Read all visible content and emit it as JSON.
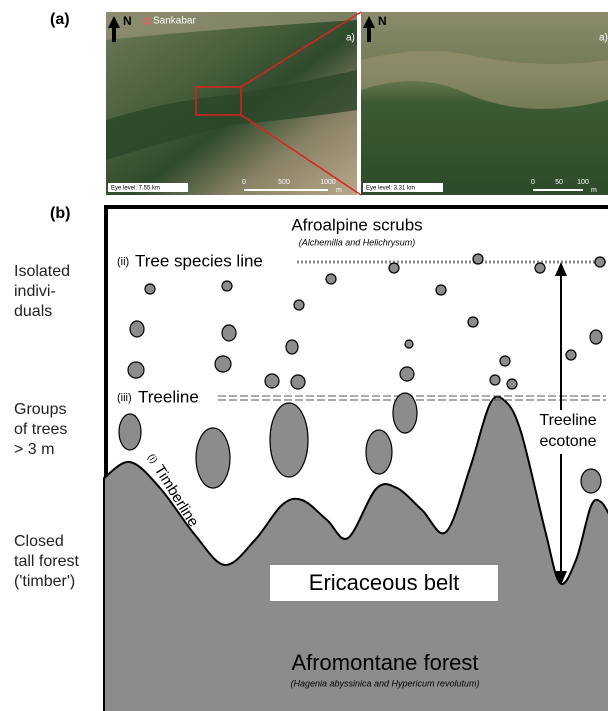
{
  "panel_a": {
    "label": "(a)",
    "images": [
      {
        "north": "N",
        "place": "Sankabar",
        "corner": "a)",
        "eye_level": "Eye level: 7.55 km",
        "scale": [
          "0",
          "500",
          "1000"
        ],
        "unit": "m"
      },
      {
        "north": "N",
        "corner": "a)",
        "eye_level": "Eye level: 3.31 km",
        "scale": [
          "0",
          "50",
          "100"
        ],
        "unit": "m"
      }
    ]
  },
  "panel_b": {
    "label": "(b)",
    "top_zone": "Afroalpine scrubs",
    "top_species": "(Alchemilla and Helichrysum)",
    "tree_species_line": {
      "marker": "(ii)",
      "text": "Tree species line"
    },
    "treeline": {
      "marker": "(iii)",
      "text": "Treeline"
    },
    "timberline": {
      "marker": "(i)",
      "text": "Timberline"
    },
    "ecotone": [
      "Treeline",
      "ecotone"
    ],
    "belt": "Ericaceous belt",
    "forest": "Afromontane forest",
    "forest_species": "(Hagenia abyssinica and Hypericum revolutum)",
    "left_labels": [
      [
        "Isolated",
        "indivi-",
        "duals"
      ],
      [
        "Groups",
        "of trees",
        "> 3 m"
      ],
      [
        "Closed",
        "tall forest",
        "('timber')"
      ]
    ]
  }
}
